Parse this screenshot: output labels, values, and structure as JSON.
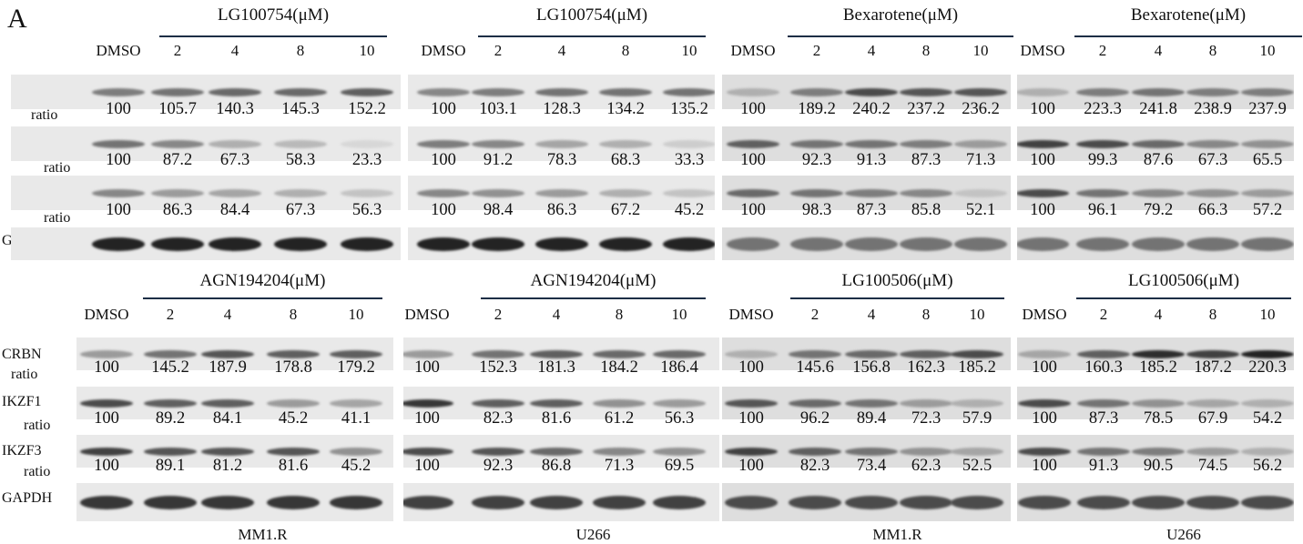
{
  "figure": {
    "panel_letter": "A",
    "row_labels": {
      "crbn": "CRBN",
      "ratio": "ratio",
      "ikzf1": "IKZF1",
      "ikzf3": "IKZF3",
      "gapdh": "GAPDH"
    },
    "lanes": [
      "DMSO",
      "2",
      "4",
      "8",
      "10"
    ],
    "panels": [
      {
        "title": "LG100754(μM)",
        "cell": "",
        "crbn": [
          "100",
          "105.7",
          "140.3",
          "145.3",
          "152.2"
        ],
        "ikzf1": [
          "100",
          "87.2",
          "67.3",
          "58.3",
          "23.3"
        ],
        "ikzf3": [
          "100",
          "86.3",
          "84.4",
          "67.3",
          "56.3"
        ]
      },
      {
        "title": "LG100754(μM)",
        "cell": "",
        "crbn": [
          "100",
          "103.1",
          "128.3",
          "134.2",
          "135.2"
        ],
        "ikzf1": [
          "100",
          "91.2",
          "78.3",
          "68.3",
          "33.3"
        ],
        "ikzf3": [
          "100",
          "98.4",
          "86.3",
          "67.2",
          "45.2"
        ]
      },
      {
        "title": "Bexarotene(μM)",
        "cell": "",
        "crbn": [
          "100",
          "189.2",
          "240.2",
          "237.2",
          "236.2"
        ],
        "ikzf1": [
          "100",
          "92.3",
          "91.3",
          "87.3",
          "71.3"
        ],
        "ikzf3": [
          "100",
          "98.3",
          "87.3",
          "85.8",
          "52.1"
        ]
      },
      {
        "title": "Bexarotene(μM)",
        "cell": "",
        "crbn": [
          "100",
          "223.3",
          "241.8",
          "238.9",
          "237.9"
        ],
        "ikzf1": [
          "100",
          "99.3",
          "87.6",
          "67.3",
          "65.5"
        ],
        "ikzf3": [
          "100",
          "96.1",
          "79.2",
          "66.3",
          "57.2"
        ]
      },
      {
        "title": "AGN194204(μM)",
        "cell": "MM1.R",
        "crbn": [
          "100",
          "145.2",
          "187.9",
          "178.8",
          "179.2"
        ],
        "ikzf1": [
          "100",
          "89.2",
          "84.1",
          "45.2",
          "41.1"
        ],
        "ikzf3": [
          "100",
          "89.1",
          "81.2",
          "81.6",
          "45.2"
        ]
      },
      {
        "title": "AGN194204(μM)",
        "cell": "U266",
        "crbn": [
          "100",
          "152.3",
          "181.3",
          "184.2",
          "186.4"
        ],
        "ikzf1": [
          "100",
          "82.3",
          "81.6",
          "61.2",
          "56.3"
        ],
        "ikzf3": [
          "100",
          "92.3",
          "86.8",
          "71.3",
          "69.5"
        ]
      },
      {
        "title": "LG100506(μM)",
        "cell": "MM1.R",
        "crbn": [
          "100",
          "145.6",
          "156.8",
          "162.3",
          "185.2"
        ],
        "ikzf1": [
          "100",
          "96.2",
          "89.4",
          "72.3",
          "57.9"
        ],
        "ikzf3": [
          "100",
          "82.3",
          "73.4",
          "62.3",
          "52.5"
        ]
      },
      {
        "title": "LG100506(μM)",
        "cell": "U266",
        "crbn": [
          "100",
          "160.3",
          "185.2",
          "187.2",
          "220.3"
        ],
        "ikzf1": [
          "100",
          "87.3",
          "78.5",
          "67.9",
          "54.2"
        ],
        "ikzf3": [
          "100",
          "91.3",
          "90.5",
          "74.5",
          "56.2"
        ]
      }
    ]
  }
}
